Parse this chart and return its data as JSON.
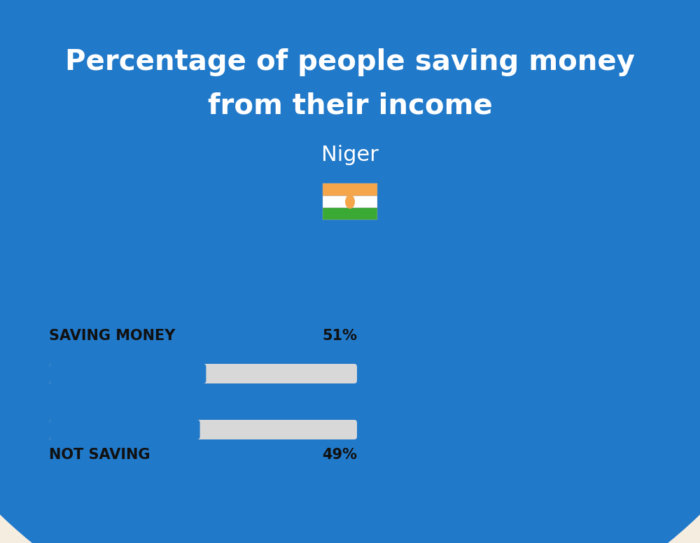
{
  "title_line1": "Percentage of people saving money",
  "title_line2": "from their income",
  "subtitle": "Niger",
  "background_color": "#f5ede0",
  "header_color": "#2179c9",
  "bar_color": "#2179c9",
  "bar_bg_color": "#d8d8d8",
  "categories": [
    "SAVING MONEY",
    "NOT SAVING"
  ],
  "values": [
    51,
    49
  ],
  "text_color": "#111111",
  "title_color": "#ffffff",
  "subtitle_color": "#ffffff",
  "flag_orange": "#f5a54a",
  "flag_white": "#ffffff",
  "flag_green": "#3aaa35",
  "flag_circle_color": "#f5a54a",
  "fig_width": 10.0,
  "fig_height": 7.76,
  "dpi": 100
}
